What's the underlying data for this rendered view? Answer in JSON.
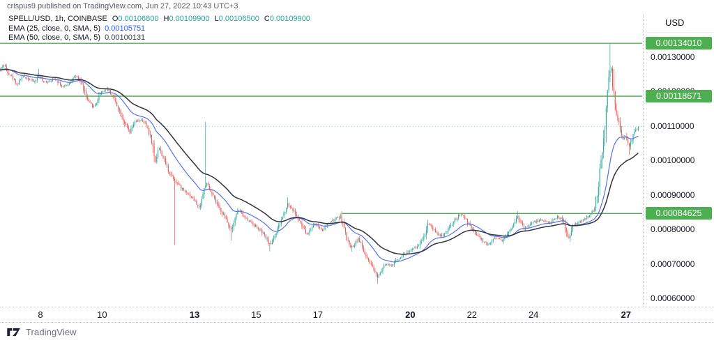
{
  "attribution": "crispus9 published on TradingView.com, Jun 27, 2022 10:43 UTC+3",
  "legend": {
    "symbol_title": "SPELL/USD, 1h, COINBASE",
    "ohlc": [
      {
        "k": "O",
        "v": "0.00106800"
      },
      {
        "k": "H",
        "v": "0.00109900"
      },
      {
        "k": "L",
        "v": "0.00106500"
      },
      {
        "k": "C",
        "v": "0.00109900"
      }
    ],
    "indicators": [
      {
        "label": "EMA (25, close, 0, SMA, 5)",
        "value": "0.00105751",
        "value_color": "#2962ff"
      },
      {
        "label": "EMA (50, close, 0, SMA, 5)",
        "value": "0.00100131",
        "value_color": "#363a45"
      }
    ]
  },
  "axis": {
    "currency": "USD",
    "price_ticks": [
      {
        "label": "0.00130000",
        "price": 0.0013
      },
      {
        "label": "0.00120000",
        "price": 0.0012
      },
      {
        "label": "0.00110000",
        "price": 0.0011
      },
      {
        "label": "0.00100000",
        "price": 0.001
      },
      {
        "label": "0.00090000",
        "price": 0.0009
      },
      {
        "label": "0.00080000",
        "price": 0.0008
      },
      {
        "label": "0.00070000",
        "price": 0.0007
      },
      {
        "label": "0.00060000",
        "price": 0.0006
      }
    ],
    "date_ticks": [
      {
        "label": "8",
        "day": 8,
        "bold": false
      },
      {
        "label": "10",
        "day": 10,
        "bold": false
      },
      {
        "label": "13",
        "day": 13,
        "bold": true
      },
      {
        "label": "15",
        "day": 15,
        "bold": false
      },
      {
        "label": "17",
        "day": 17,
        "bold": false
      },
      {
        "label": "20",
        "day": 20,
        "bold": true
      },
      {
        "label": "22",
        "day": 22,
        "bold": false
      },
      {
        "label": "24",
        "day": 24,
        "bold": false
      },
      {
        "label": "27",
        "day": 27,
        "bold": true
      }
    ]
  },
  "levels": [
    {
      "label": "0.00134010",
      "price": 0.0013401,
      "color": "#4caf50",
      "start_day": null
    },
    {
      "label": "0.00118671",
      "price": 0.0011867,
      "color": "#4caf50",
      "start_day": null
    },
    {
      "label": "0.00084625",
      "price": 0.00084625,
      "color": "#4caf50",
      "start_day": 17.77
    }
  ],
  "footer": {
    "brand": "TradingView"
  },
  "chart_data": {
    "type": "candlestick",
    "symbol": "SPELL/USD",
    "interval": "1h",
    "exchange": "COINBASE",
    "title": "SPELL/USD, 1h, COINBASE",
    "last_bar": {
      "open": 0.001068,
      "high": 0.001099,
      "low": 0.001065,
      "close": 0.001099
    },
    "ema25_last": 0.00105751,
    "ema50_last": 0.00100131,
    "x_axis": {
      "unit": "day of June 2022",
      "ticks": [
        8,
        10,
        13,
        15,
        17,
        20,
        22,
        24,
        27
      ],
      "domain": [
        6.69,
        27.45
      ]
    },
    "y_axis": {
      "unit": "USD",
      "ticks": [
        0.0013,
        0.0012,
        0.0011,
        0.001,
        0.0009,
        0.0008,
        0.0007,
        0.0006
      ],
      "visible_range": [
        0.000576,
        0.001466
      ]
    },
    "horizontal_levels": [
      0.0013401,
      0.0011867,
      0.00084625
    ],
    "last_price_line": 0.001099,
    "close_path": [
      [
        6.69,
        0.001262
      ],
      [
        6.8,
        0.00128
      ],
      [
        6.95,
        0.001256
      ],
      [
        7.1,
        0.00124
      ],
      [
        7.25,
        0.00122
      ],
      [
        7.42,
        0.001246
      ],
      [
        7.6,
        0.001238
      ],
      [
        7.8,
        0.001228
      ],
      [
        7.95,
        0.001246
      ],
      [
        8.1,
        0.001226
      ],
      [
        8.3,
        0.001232
      ],
      [
        8.5,
        0.001238
      ],
      [
        8.72,
        0.001212
      ],
      [
        8.9,
        0.001222
      ],
      [
        9.1,
        0.001244
      ],
      [
        9.3,
        0.001232
      ],
      [
        9.55,
        0.00117
      ],
      [
        9.75,
        0.001155
      ],
      [
        9.95,
        0.001198
      ],
      [
        10.15,
        0.001208
      ],
      [
        10.35,
        0.001188
      ],
      [
        10.55,
        0.001148
      ],
      [
        10.75,
        0.001105
      ],
      [
        10.9,
        0.00108
      ],
      [
        11.05,
        0.00111
      ],
      [
        11.25,
        0.001118
      ],
      [
        11.45,
        0.001102
      ],
      [
        11.62,
        0.001055
      ],
      [
        11.72,
        0.000992
      ],
      [
        11.83,
        0.00104
      ],
      [
        12.0,
        0.001005
      ],
      [
        12.15,
        0.00097
      ],
      [
        12.35,
        0.000945
      ],
      [
        12.55,
        0.000922
      ],
      [
        12.75,
        0.000908
      ],
      [
        12.95,
        0.00089
      ],
      [
        13.15,
        0.000862
      ],
      [
        13.37,
        0.000935
      ],
      [
        13.55,
        0.000905
      ],
      [
        13.75,
        0.000868
      ],
      [
        13.95,
        0.000842
      ],
      [
        14.18,
        0.0008
      ],
      [
        14.42,
        0.000858
      ],
      [
        14.62,
        0.000835
      ],
      [
        14.85,
        0.00082
      ],
      [
        15.1,
        0.0008
      ],
      [
        15.3,
        0.000778
      ],
      [
        15.45,
        0.000755
      ],
      [
        15.7,
        0.0008
      ],
      [
        16.02,
        0.000875
      ],
      [
        16.25,
        0.00085
      ],
      [
        16.45,
        0.000815
      ],
      [
        16.65,
        0.000785
      ],
      [
        16.9,
        0.000818
      ],
      [
        17.15,
        0.000798
      ],
      [
        17.4,
        0.000822
      ],
      [
        17.75,
        0.000838
      ],
      [
        17.95,
        0.000768
      ],
      [
        18.1,
        0.000748
      ],
      [
        18.32,
        0.000775
      ],
      [
        18.55,
        0.000722
      ],
      [
        18.75,
        0.00069
      ],
      [
        18.95,
        0.000662
      ],
      [
        19.15,
        0.0007
      ],
      [
        19.38,
        0.000694
      ],
      [
        19.6,
        0.000715
      ],
      [
        19.85,
        0.000732
      ],
      [
        20.04,
        0.00074
      ],
      [
        20.26,
        0.000752
      ],
      [
        20.49,
        0.00079
      ],
      [
        20.58,
        0.00082
      ],
      [
        20.76,
        0.0008
      ],
      [
        20.99,
        0.000778
      ],
      [
        21.17,
        0.000795
      ],
      [
        21.39,
        0.00082
      ],
      [
        21.57,
        0.000838
      ],
      [
        21.71,
        0.000843
      ],
      [
        21.89,
        0.000815
      ],
      [
        22.07,
        0.000792
      ],
      [
        22.3,
        0.000772
      ],
      [
        22.52,
        0.000755
      ],
      [
        22.75,
        0.000778
      ],
      [
        22.98,
        0.000768
      ],
      [
        23.2,
        0.000792
      ],
      [
        23.48,
        0.00084
      ],
      [
        23.7,
        0.0008
      ],
      [
        23.93,
        0.000818
      ],
      [
        24.22,
        0.000828
      ],
      [
        24.52,
        0.00082
      ],
      [
        24.79,
        0.000838
      ],
      [
        24.97,
        0.000825
      ],
      [
        25.12,
        0.00077
      ],
      [
        25.29,
        0.000812
      ],
      [
        25.58,
        0.000825
      ],
      [
        25.81,
        0.00084
      ],
      [
        25.96,
        0.000855
      ],
      [
        26.1,
        0.00092
      ],
      [
        26.19,
        0.001
      ],
      [
        26.28,
        0.00106
      ],
      [
        26.4,
        0.00119
      ],
      [
        26.46,
        0.00125
      ],
      [
        26.5,
        0.001285
      ],
      [
        26.57,
        0.001212
      ],
      [
        26.64,
        0.00116
      ],
      [
        26.73,
        0.00112
      ],
      [
        26.82,
        0.001092
      ],
      [
        26.91,
        0.001062
      ],
      [
        27.0,
        0.001072
      ],
      [
        27.11,
        0.00104
      ],
      [
        27.2,
        0.001068
      ],
      [
        27.29,
        0.001086
      ],
      [
        27.41,
        0.001099
      ]
    ],
    "wick_events": [
      {
        "day": 7.95,
        "high": 0.001266
      },
      {
        "day": 12.35,
        "low": 0.000755
      },
      {
        "day": 13.36,
        "high": 0.001112
      },
      {
        "day": 14.18,
        "low": 0.000768
      },
      {
        "day": 15.45,
        "low": 0.000736
      },
      {
        "day": 16.02,
        "high": 0.000893
      },
      {
        "day": 17.75,
        "high": 0.000847
      },
      {
        "day": 18.1,
        "low": 0.000735
      },
      {
        "day": 18.95,
        "low": 0.000642
      },
      {
        "day": 20.58,
        "high": 0.000828
      },
      {
        "day": 21.7,
        "high": 0.000848
      },
      {
        "day": 23.48,
        "high": 0.000853
      },
      {
        "day": 26.5,
        "high": 0.0013401
      },
      {
        "day": 26.6,
        "high": 0.001265
      },
      {
        "day": 27.11,
        "low": 0.001016
      }
    ],
    "colors": {
      "up": "#26a69a",
      "down": "#ef5350",
      "ema25": "#5472e8",
      "ema50": "#30333e",
      "level": "#4caf50",
      "last_price_line": "#26a69a"
    }
  }
}
